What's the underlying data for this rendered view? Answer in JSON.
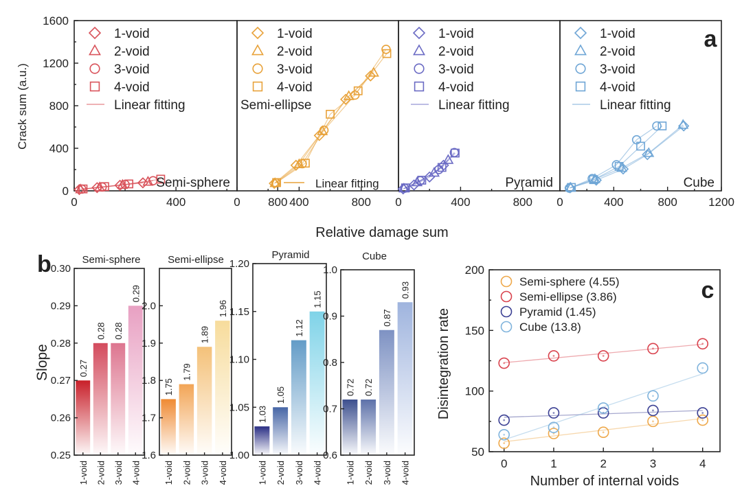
{
  "chart_data": [
    {
      "id": "a",
      "panel_label": "a",
      "type": "scatter",
      "ylabel": "Crack sum (a.u.)",
      "xlabel": "Relative damage sum",
      "ylim": [
        0,
        1600
      ],
      "yticks": [
        "0",
        "400",
        "800",
        "1200",
        "1600"
      ],
      "legend": [
        "1-void",
        "2-void",
        "3-void",
        "4-void"
      ],
      "fit_label": "Linear fitting",
      "subplots": [
        {
          "name": "Semi-sphere",
          "color": "#d9535b",
          "xlim": [
            0,
            640
          ],
          "xticks": [
            "0",
            "400",
            "800"
          ],
          "series": [
            {
              "marker": "diamond",
              "x": [
                20,
                90,
                180,
                270
              ],
              "y": [
                12,
                30,
                52,
                75
              ]
            },
            {
              "marker": "triangle",
              "x": [
                25,
                100,
                190,
                290
              ],
              "y": [
                14,
                33,
                56,
                85
              ]
            },
            {
              "marker": "circle",
              "x": [
                30,
                110,
                200,
                310
              ],
              "y": [
                16,
                36,
                60,
                95
              ]
            },
            {
              "marker": "square",
              "x": [
                35,
                120,
                215,
                340
              ],
              "y": [
                18,
                40,
                65,
                110
              ]
            }
          ]
        },
        {
          "name": "Semi-ellipse",
          "color": "#e8a23a",
          "xlim": [
            0,
            1040
          ],
          "xticks": [
            "0",
            "400",
            "800"
          ],
          "series": [
            {
              "marker": "diamond",
              "x": [
                240,
                380,
                530,
                700,
                860
              ],
              "y": [
                70,
                240,
                520,
                860,
                1080
              ]
            },
            {
              "marker": "triangle",
              "x": [
                245,
                400,
                550,
                720,
                880
              ],
              "y": [
                72,
                250,
                560,
                890,
                1110
              ]
            },
            {
              "marker": "circle",
              "x": [
                250,
                420,
                560,
                760,
                960
              ],
              "y": [
                75,
                255,
                570,
                900,
                1330
              ]
            },
            {
              "marker": "square",
              "x": [
                255,
                440,
                600,
                780,
                965
              ],
              "y": [
                78,
                260,
                720,
                940,
                1290
              ]
            }
          ]
        },
        {
          "name": "Pyramid",
          "color": "#6b6bc4",
          "xlim": [
            0,
            1040
          ],
          "xticks": [
            "0",
            "400",
            "800"
          ],
          "series": [
            {
              "marker": "diamond",
              "x": [
                30,
                100,
                200,
                290
              ],
              "y": [
                18,
                55,
                130,
                240
              ]
            },
            {
              "marker": "triangle",
              "x": [
                35,
                120,
                230,
                320
              ],
              "y": [
                22,
                80,
                170,
                290
              ]
            },
            {
              "marker": "circle",
              "x": [
                40,
                140,
                260,
                360
              ],
              "y": [
                25,
                95,
                200,
                360
              ]
            },
            {
              "marker": "square",
              "x": [
                45,
                150,
                280,
                365
              ],
              "y": [
                28,
                100,
                220,
                355
              ]
            }
          ]
        },
        {
          "name": "Cube",
          "color": "#6fa6d6",
          "xlim": [
            0,
            1200
          ],
          "xticks": [
            "0",
            "400",
            "800",
            "1200"
          ],
          "series": [
            {
              "marker": "diamond",
              "x": [
                75,
                270,
                470,
                650,
                920
              ],
              "y": [
                28,
                100,
                205,
                340,
                610
              ]
            },
            {
              "marker": "triangle",
              "x": [
                80,
                260,
                460,
                660,
                915
              ],
              "y": [
                30,
                110,
                215,
                355,
                620
              ]
            },
            {
              "marker": "circle",
              "x": [
                70,
                240,
                420,
                570,
                720
              ],
              "y": [
                25,
                115,
                245,
                480,
                610
              ]
            },
            {
              "marker": "square",
              "x": [
                85,
                250,
                440,
                600,
                760
              ],
              "y": [
                32,
                105,
                230,
                420,
                610
              ]
            }
          ]
        }
      ]
    },
    {
      "id": "b",
      "panel_label": "b",
      "type": "bar",
      "ylabel": "Slope",
      "categories": [
        "1-void",
        "2-void",
        "3-void",
        "4-void"
      ],
      "subplots": [
        {
          "name": "Semi-sphere",
          "color": "#c8202a",
          "color_top": "#e8a0c2",
          "ylim": [
            0.25,
            0.3
          ],
          "yticks": [
            "0.25",
            "0.26",
            "0.27",
            "0.28",
            "0.29",
            "0.30"
          ],
          "values": [
            0.27,
            0.28,
            0.28,
            0.29
          ],
          "labels": [
            "0.27",
            "0.28",
            "0.28",
            "0.29"
          ]
        },
        {
          "name": "Semi-ellipse",
          "color": "#ef8a33",
          "color_top": "#f7dc9c",
          "ylim": [
            1.6,
            2.1
          ],
          "yticks": [
            "1.6",
            "1.7",
            "1.8",
            "1.9",
            "2.0"
          ],
          "values": [
            1.75,
            1.79,
            1.89,
            1.96
          ],
          "labels": [
            "1.75",
            "1.79",
            "1.89",
            "1.96"
          ]
        },
        {
          "name": "Pyramid",
          "color": "#2b2f85",
          "color_top": "#7fd3e8",
          "ylim": [
            1.0,
            1.2
          ],
          "yticks": [
            "1.00",
            "1.05",
            "1.10",
            "1.15",
            "1.20"
          ],
          "values": [
            1.03,
            1.05,
            1.12,
            1.15
          ],
          "labels": [
            "1.03",
            "1.05",
            "1.12",
            "1.15"
          ]
        },
        {
          "name": "Cube",
          "color": "#3c4f8e",
          "color_top": "#9fb4de",
          "ylim": [
            0.6,
            1.0
          ],
          "yticks": [
            "0.6",
            "0.7",
            "0.8",
            "0.9",
            "1.0"
          ],
          "values": [
            0.72,
            0.72,
            0.87,
            0.93
          ],
          "labels": [
            "0.72",
            "0.72",
            "0.87",
            "0.93"
          ]
        }
      ]
    },
    {
      "id": "c",
      "panel_label": "c",
      "type": "scatter",
      "xlabel": "Number of internal voids",
      "ylabel": "Disintegration rate",
      "x": [
        0,
        1,
        2,
        3,
        4
      ],
      "xlim": [
        -0.3,
        4.35
      ],
      "ylim": [
        50,
        200
      ],
      "xticks": [
        "0",
        "1",
        "2",
        "3",
        "4"
      ],
      "yticks": [
        "50",
        "100",
        "150",
        "200"
      ],
      "series": [
        {
          "name": "Semi-sphere (4.55)",
          "color": "#eea84a",
          "values": [
            57,
            65,
            66,
            75,
            76
          ]
        },
        {
          "name": "Semi-ellipse (3.86)",
          "color": "#d9424d",
          "values": [
            123,
            129,
            129,
            135,
            139
          ]
        },
        {
          "name": "Pyramid (1.45)",
          "color": "#3a3f93",
          "values": [
            76,
            82,
            82,
            84,
            82
          ]
        },
        {
          "name": "Cube (13.8)",
          "color": "#7fb3dc",
          "values": [
            64,
            70,
            86,
            96,
            119
          ]
        }
      ]
    }
  ]
}
